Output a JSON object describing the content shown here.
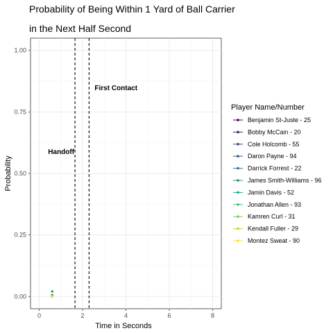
{
  "chart_data": {
    "type": "scatter",
    "title_line1": "Probability of Being Within 1 Yard of Ball Carrier",
    "title_line2": "in the Next Half Second",
    "xlabel": "Time in Seconds",
    "ylabel": "Probability",
    "xlim": [
      -0.4,
      8.4
    ],
    "ylim": [
      -0.05,
      1.05
    ],
    "x_ticks": [
      0,
      2,
      4,
      6,
      8
    ],
    "x_tick_labels": [
      "0",
      "2",
      "4",
      "6",
      "8"
    ],
    "y_ticks": [
      0,
      0.25,
      0.5,
      0.75,
      1.0
    ],
    "y_tick_labels": [
      "0.00",
      "0.25",
      "0.50",
      "0.75",
      "1.00"
    ],
    "grid": true,
    "legend_title": "Player Name/Number",
    "legend_position": "right",
    "events": [
      {
        "label": "Handoff",
        "x": 1.65,
        "label_y": 0.59
      },
      {
        "label": "First Contact",
        "x": 2.3,
        "label_y": 0.85
      }
    ],
    "series": [
      {
        "name": "Benjamin St-Juste - 25",
        "color": "#440154",
        "points": [
          [
            0.6,
            0.0
          ]
        ]
      },
      {
        "name": "Bobby McCain - 20",
        "color": "#482576",
        "points": [
          [
            0.6,
            0.0
          ]
        ]
      },
      {
        "name": "Cole Holcomb - 55",
        "color": "#414487",
        "points": [
          [
            0.6,
            0.0
          ]
        ]
      },
      {
        "name": "Daron Payne - 94",
        "color": "#35608D",
        "points": [
          [
            0.6,
            0.0
          ]
        ]
      },
      {
        "name": "Darrick Forrest - 22",
        "color": "#2A788E",
        "points": [
          [
            0.6,
            0.005
          ]
        ]
      },
      {
        "name": "James Smith-Williams - 96",
        "color": "#21908C",
        "points": [
          [
            0.6,
            0.0
          ]
        ]
      },
      {
        "name": "Jamin Davis - 52",
        "color": "#22A884",
        "points": [
          [
            0.6,
            0.02
          ]
        ]
      },
      {
        "name": "Jonathan Allen - 93",
        "color": "#43BF71",
        "points": [
          [
            0.6,
            0.0
          ]
        ]
      },
      {
        "name": "Kamren Curl - 31",
        "color": "#7AD151",
        "points": [
          [
            0.6,
            0.0
          ]
        ]
      },
      {
        "name": "Kendall Fuller - 29",
        "color": "#BBDF27",
        "points": [
          [
            0.6,
            0.0
          ]
        ]
      },
      {
        "name": "Montez Sweat - 90",
        "color": "#FDE725",
        "points": [
          [
            0.6,
            0.0
          ]
        ]
      }
    ]
  }
}
